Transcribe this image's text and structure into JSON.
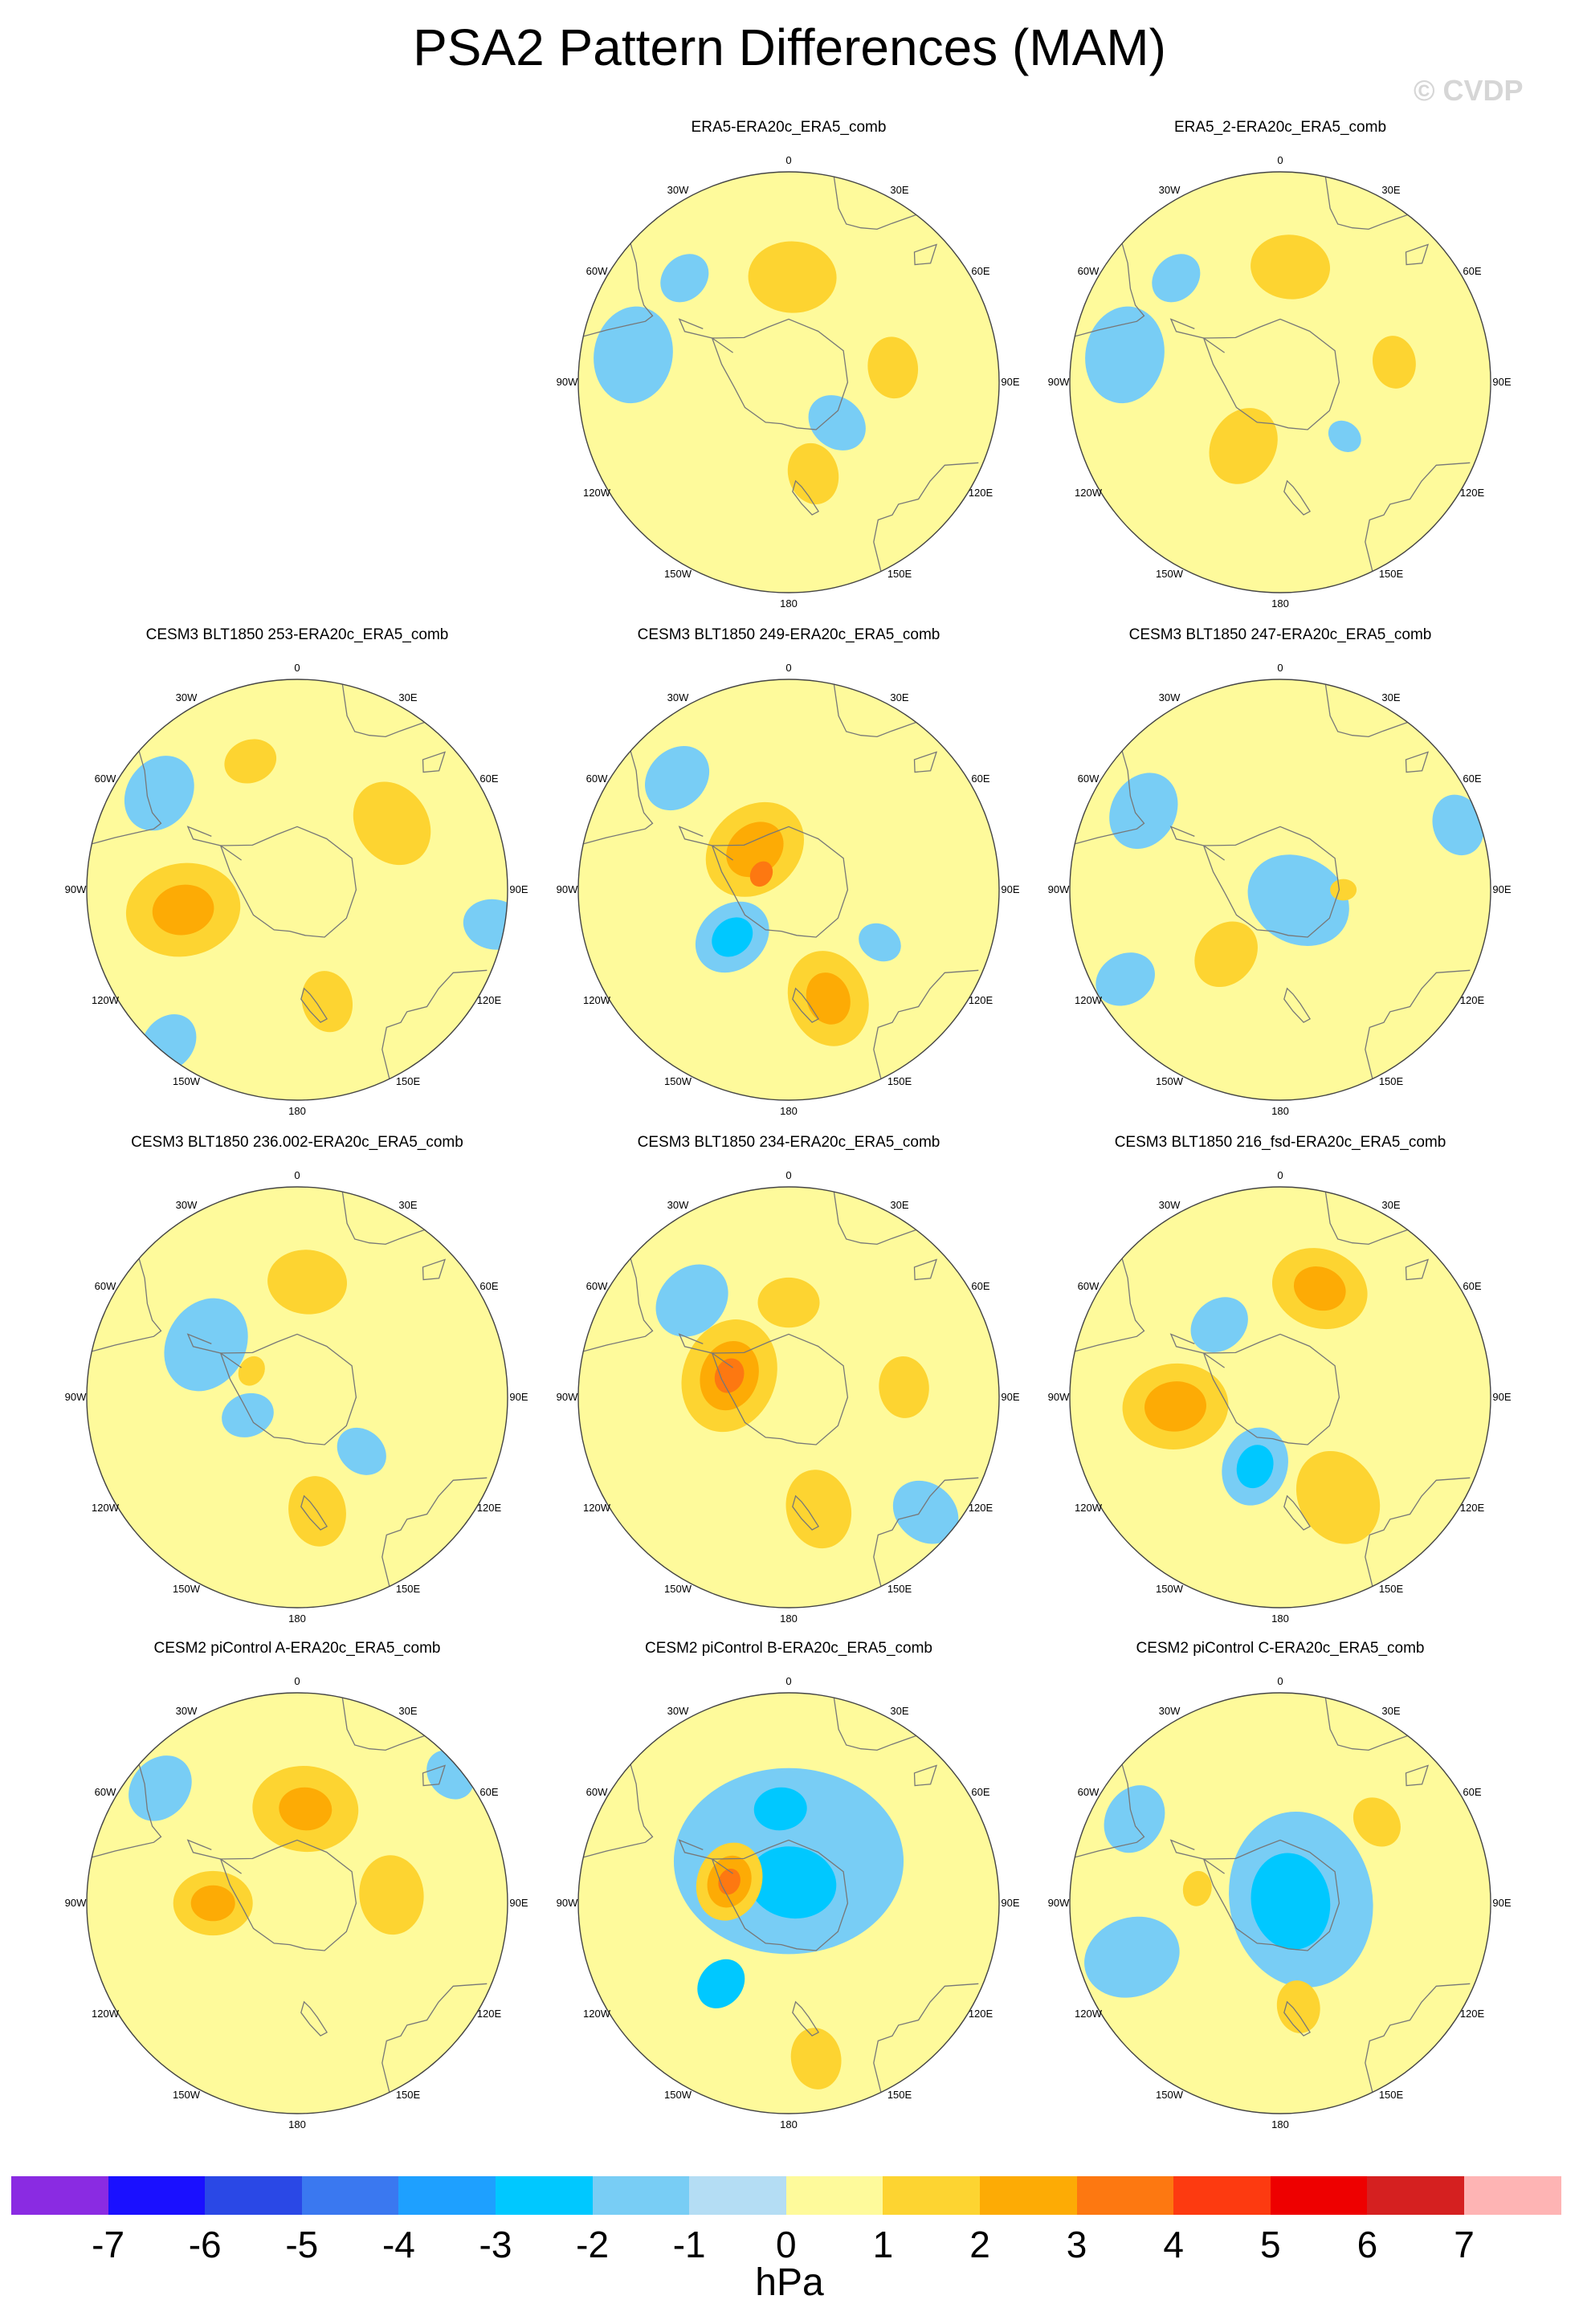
{
  "figure": {
    "title": "PSA2 Pattern Differences (MAM)",
    "watermark": "© CVDP",
    "units": "hPa"
  },
  "colorbar": {
    "colors": [
      "#8a2be2",
      "#1a10ff",
      "#2a48e6",
      "#3a78f0",
      "#1ea0ff",
      "#00c8ff",
      "#78cdf5",
      "#b4ddf4",
      "#fefa9b",
      "#fdd431",
      "#fdab05",
      "#fd7811",
      "#fd3a10",
      "#ee0000",
      "#d52020",
      "#feb4b4"
    ],
    "labels": [
      "-7",
      "-6",
      "-5",
      "-4",
      "-3",
      "-2",
      "-1",
      "0",
      "1",
      "2",
      "3",
      "4",
      "5",
      "6",
      "7"
    ]
  },
  "lon_labels": [
    "0",
    "30E",
    "60E",
    "90E",
    "120E",
    "150E",
    "180",
    "150W",
    "120W",
    "90W",
    "60W",
    "30W"
  ],
  "colors": {
    "land_line": "#777777",
    "yellow": "#fefa9b",
    "light_blue": "#b4ddf4",
    "mid_blue": "#78cdf5",
    "gold": "#fdd431",
    "orange": "#fdab05",
    "dark_orange": "#fd7811"
  },
  "panels": [
    {
      "title": "ERA5-ERA20c_ERA5_comb",
      "row": 0,
      "col": 1,
      "anomalies": [
        {
          "lon": 2,
          "colat": 0.5,
          "val": 1,
          "r": 0.2
        },
        {
          "lon": 82,
          "colat": 0.5,
          "val": 1,
          "r": 0.14
        },
        {
          "lon": 165,
          "colat": 0.45,
          "val": 1,
          "r": 0.14
        },
        {
          "lon": 130,
          "colat": 0.3,
          "val": -1,
          "r": 0.14
        },
        {
          "lon": -80,
          "colat": 0.75,
          "val": -1,
          "r": 0.22
        },
        {
          "lon": -45,
          "colat": 0.7,
          "val": -1,
          "r": 0.12
        }
      ]
    },
    {
      "title": "ERA5_2-ERA20c_ERA5_comb",
      "row": 0,
      "col": 2,
      "anomalies": [
        {
          "lon": 5,
          "colat": 0.55,
          "val": 1,
          "r": 0.18
        },
        {
          "lon": 80,
          "colat": 0.55,
          "val": 1,
          "r": 0.12
        },
        {
          "lon": -150,
          "colat": 0.35,
          "val": 1,
          "r": 0.18
        },
        {
          "lon": -80,
          "colat": 0.75,
          "val": -1,
          "r": 0.22
        },
        {
          "lon": -45,
          "colat": 0.7,
          "val": -1,
          "r": 0.12
        },
        {
          "lon": 130,
          "colat": 0.4,
          "val": -1,
          "r": 0.08
        }
      ]
    },
    {
      "title": "CESM3 BLT1850 253-ERA20c_ERA5_comb",
      "row": 1,
      "col": 0,
      "anomalies": [
        {
          "lon": -20,
          "colat": 0.65,
          "val": 1,
          "r": 0.12
        },
        {
          "lon": 55,
          "colat": 0.55,
          "val": 1,
          "r": 0.2
        },
        {
          "lon": -100,
          "colat": 0.55,
          "val": 2,
          "r": 0.14
        },
        {
          "lon": -100,
          "colat": 0.55,
          "val": 1,
          "r": 0.26
        },
        {
          "lon": 165,
          "colat": 0.55,
          "val": 1,
          "r": 0.14
        },
        {
          "lon": -55,
          "colat": 0.8,
          "val": -1,
          "r": 0.18
        },
        {
          "lon": 100,
          "colat": 0.95,
          "val": -1,
          "r": 0.14
        },
        {
          "lon": -140,
          "colat": 0.95,
          "val": -1,
          "r": 0.14
        }
      ]
    },
    {
      "title": "CESM3 BLT1850 249-ERA20c_ERA5_comb",
      "row": 1,
      "col": 1,
      "anomalies": [
        {
          "lon": -40,
          "colat": 0.25,
          "val": 2,
          "r": 0.14
        },
        {
          "lon": -40,
          "colat": 0.25,
          "val": 1,
          "r": 0.24
        },
        {
          "lon": -60,
          "colat": 0.15,
          "val": 3,
          "r": 0.06
        },
        {
          "lon": 160,
          "colat": 0.55,
          "val": 2,
          "r": 0.12
        },
        {
          "lon": 160,
          "colat": 0.55,
          "val": 1,
          "r": 0.22
        },
        {
          "lon": -130,
          "colat": 0.35,
          "val": -2,
          "r": 0.1
        },
        {
          "lon": -130,
          "colat": 0.35,
          "val": -1,
          "r": 0.18
        },
        {
          "lon": -45,
          "colat": 0.75,
          "val": -1,
          "r": 0.16
        },
        {
          "lon": 120,
          "colat": 0.5,
          "val": -1,
          "r": 0.1
        }
      ]
    },
    {
      "title": "CESM3 BLT1850 247-ERA20c_ERA5_comb",
      "row": 1,
      "col": 2,
      "anomalies": [
        {
          "lon": -140,
          "colat": 0.4,
          "val": 1,
          "r": 0.16
        },
        {
          "lon": 90,
          "colat": 0.3,
          "val": 1,
          "r": 0.06
        },
        {
          "lon": 120,
          "colat": 0.1,
          "val": -1,
          "r": 0.24
        },
        {
          "lon": -60,
          "colat": 0.75,
          "val": -1,
          "r": 0.18
        },
        {
          "lon": 70,
          "colat": 0.9,
          "val": -1,
          "r": 0.14
        },
        {
          "lon": -120,
          "colat": 0.85,
          "val": -1,
          "r": 0.14
        }
      ]
    },
    {
      "title": "CESM3 BLT1850 236.002-ERA20c_ERA5_comb",
      "row": 2,
      "col": 0,
      "anomalies": [
        {
          "lon": 5,
          "colat": 0.55,
          "val": 1,
          "r": 0.18
        },
        {
          "lon": 170,
          "colat": 0.55,
          "val": 1,
          "r": 0.16
        },
        {
          "lon": -60,
          "colat": 0.25,
          "val": 1,
          "r": 0.07
        },
        {
          "lon": -60,
          "colat": 0.5,
          "val": -1,
          "r": 0.22
        },
        {
          "lon": 130,
          "colat": 0.4,
          "val": -1,
          "r": 0.12
        },
        {
          "lon": -110,
          "colat": 0.25,
          "val": -1,
          "r": 0.12
        }
      ]
    },
    {
      "title": "CESM3 BLT1850 234-ERA20c_ERA5_comb",
      "row": 2,
      "col": 1,
      "anomalies": [
        {
          "lon": -70,
          "colat": 0.3,
          "val": 3,
          "r": 0.08
        },
        {
          "lon": -70,
          "colat": 0.3,
          "val": 2,
          "r": 0.16
        },
        {
          "lon": -70,
          "colat": 0.3,
          "val": 1,
          "r": 0.26
        },
        {
          "lon": 0,
          "colat": 0.45,
          "val": 1,
          "r": 0.14
        },
        {
          "lon": 85,
          "colat": 0.55,
          "val": 1,
          "r": 0.14
        },
        {
          "lon": 165,
          "colat": 0.55,
          "val": 1,
          "r": 0.18
        },
        {
          "lon": -45,
          "colat": 0.65,
          "val": -1,
          "r": 0.18
        },
        {
          "lon": 130,
          "colat": 0.85,
          "val": -1,
          "r": 0.16
        }
      ]
    },
    {
      "title": "CESM3 BLT1850 216_fsd-ERA20c_ERA5_comb",
      "row": 2,
      "col": 2,
      "anomalies": [
        {
          "lon": 20,
          "colat": 0.55,
          "val": 2,
          "r": 0.12
        },
        {
          "lon": 20,
          "colat": 0.55,
          "val": 1,
          "r": 0.22
        },
        {
          "lon": -95,
          "colat": 0.5,
          "val": 2,
          "r": 0.14
        },
        {
          "lon": -95,
          "colat": 0.5,
          "val": 1,
          "r": 0.24
        },
        {
          "lon": -160,
          "colat": 0.35,
          "val": -2,
          "r": 0.1
        },
        {
          "lon": -160,
          "colat": 0.35,
          "val": -1,
          "r": 0.18
        },
        {
          "lon": 150,
          "colat": 0.55,
          "val": 1,
          "r": 0.22
        },
        {
          "lon": -40,
          "colat": 0.45,
          "val": -1,
          "r": 0.14
        }
      ]
    },
    {
      "title": "CESM2 piControl A-ERA20c_ERA5_comb",
      "row": 3,
      "col": 0,
      "anomalies": [
        {
          "lon": 5,
          "colat": 0.45,
          "val": 2,
          "r": 0.12
        },
        {
          "lon": 5,
          "colat": 0.45,
          "val": 1,
          "r": 0.24
        },
        {
          "lon": -90,
          "colat": 0.4,
          "val": 2,
          "r": 0.1
        },
        {
          "lon": -90,
          "colat": 0.4,
          "val": 1,
          "r": 0.18
        },
        {
          "lon": 85,
          "colat": 0.45,
          "val": 1,
          "r": 0.18
        },
        {
          "lon": -50,
          "colat": 0.85,
          "val": -1,
          "r": 0.16
        },
        {
          "lon": 50,
          "colat": 0.95,
          "val": -1,
          "r": 0.12
        }
      ]
    },
    {
      "title": "CESM2 piControl B-ERA20c_ERA5_comb",
      "row": 3,
      "col": 1,
      "anomalies": [
        {
          "lon": -70,
          "colat": 0.3,
          "val": 3,
          "r": 0.06
        },
        {
          "lon": -70,
          "colat": 0.3,
          "val": 2,
          "r": 0.12
        },
        {
          "lon": -70,
          "colat": 0.3,
          "val": 1,
          "r": 0.18
        },
        {
          "lon": 170,
          "colat": 0.75,
          "val": 1,
          "r": 0.14
        },
        {
          "lon": 10,
          "colat": 0.1,
          "val": -2,
          "r": 0.2
        },
        {
          "lon": -5,
          "colat": 0.45,
          "val": -2,
          "r": 0.12
        },
        {
          "lon": -140,
          "colat": 0.5,
          "val": -2,
          "r": 0.12
        },
        {
          "lon": 0,
          "colat": 0.2,
          "val": -1,
          "r": 0.52
        }
      ]
    },
    {
      "title": "CESM2 piControl C-ERA20c_ERA5_comb",
      "row": 3,
      "col": 2,
      "anomalies": [
        {
          "lon": 50,
          "colat": 0.6,
          "val": 1,
          "r": 0.12
        },
        {
          "lon": 170,
          "colat": 0.5,
          "val": 1,
          "r": 0.12
        },
        {
          "lon": -80,
          "colat": 0.4,
          "val": 1,
          "r": 0.08
        },
        {
          "lon": 80,
          "colat": 0.05,
          "val": -2,
          "r": 0.22
        },
        {
          "lon": 80,
          "colat": 0.1,
          "val": -1,
          "r": 0.4
        },
        {
          "lon": -110,
          "colat": 0.75,
          "val": -1,
          "r": 0.22
        },
        {
          "lon": -60,
          "colat": 0.8,
          "val": -1,
          "r": 0.16
        }
      ]
    }
  ]
}
